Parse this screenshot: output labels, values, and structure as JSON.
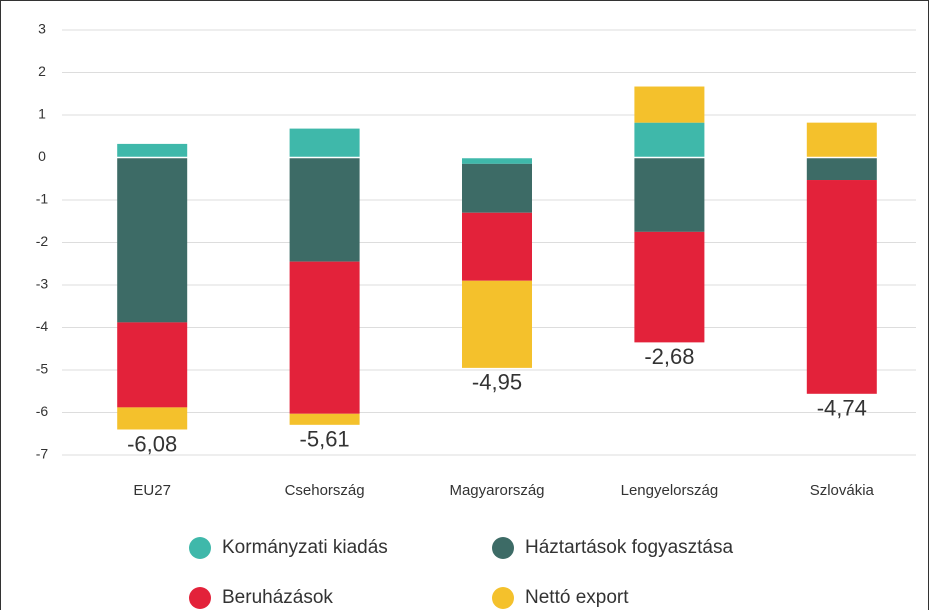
{
  "chart_data": {
    "type": "stacked_bar",
    "categories": [
      "EU27",
      "Csehország",
      "Magyarország",
      "Lengyelország",
      "Szlovákia"
    ],
    "series": [
      {
        "name": "Kormányzati kiadás",
        "color": "#3fb8aa",
        "values": [
          0.32,
          0.68,
          -0.15,
          0.82,
          0
        ]
      },
      {
        "name": "Háztartások fogyasztása",
        "color": "#3d6b66",
        "values": [
          -3.88,
          -2.45,
          -1.15,
          -1.75,
          -0.53
        ]
      },
      {
        "name": "Beruházások",
        "color": "#e3223a",
        "values": [
          -2.0,
          -3.58,
          -1.6,
          -2.6,
          -5.03
        ]
      },
      {
        "name": "Nettó export",
        "color": "#f4c12c",
        "values": [
          -0.52,
          -0.26,
          -2.05,
          0.85,
          0.82
        ]
      }
    ],
    "totals": [
      -6.08,
      -5.61,
      -4.95,
      -2.68,
      -4.74
    ],
    "total_labels": [
      "-6,08",
      "-5,61",
      "-4,95",
      "-2,68",
      "-4,74"
    ],
    "ylim": [
      -7,
      3
    ],
    "yticks": [
      3,
      2,
      1,
      0,
      -1,
      -2,
      -3,
      -4,
      -5,
      -6,
      -7
    ],
    "grid": true
  }
}
